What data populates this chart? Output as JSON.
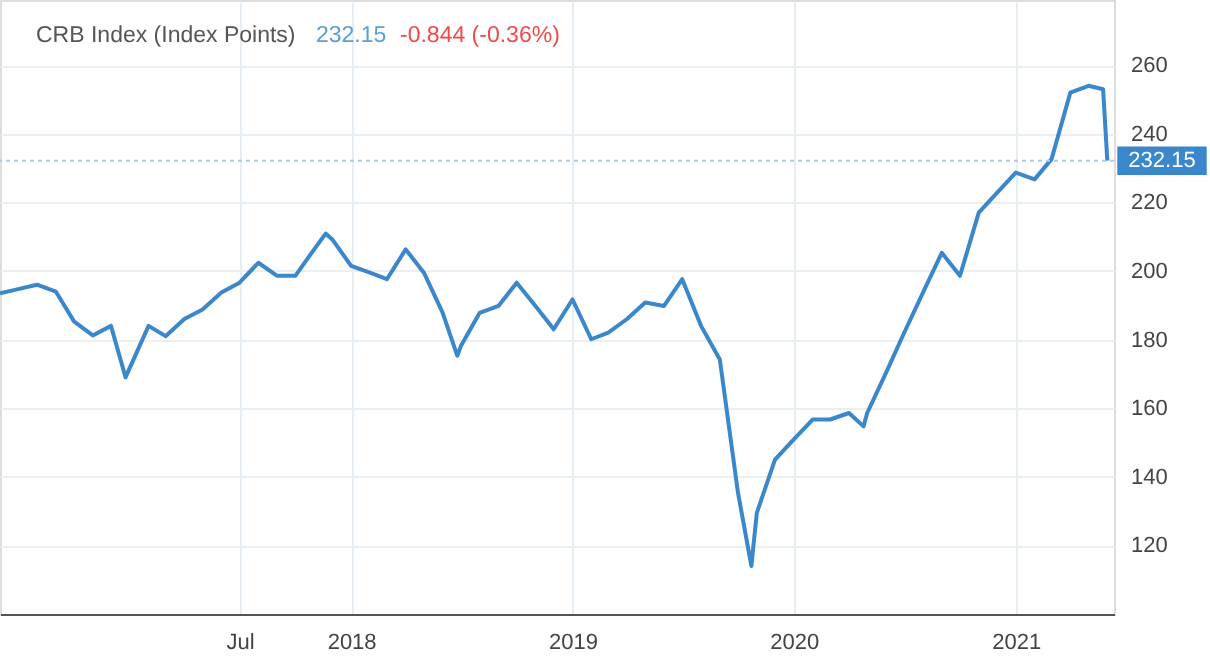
{
  "chart_data": {
    "type": "line",
    "title": "CRB Index (Index Points)",
    "annotations": [
      "232.15",
      "-0.844 (-0.36%)"
    ],
    "x": [
      "2016-06-01",
      "2016-07-01",
      "2016-08-01",
      "2016-09-01",
      "2016-10-01",
      "2016-11-01",
      "2016-12-01",
      "2016-12-25",
      "2017-02-01",
      "2017-03-01",
      "2017-04-01",
      "2017-05-01",
      "2017-06-01",
      "2017-07-01",
      "2017-08-01",
      "2017-09-01",
      "2017-10-01",
      "2017-11-01",
      "2017-11-20",
      "2017-12-01",
      "2018-01-01",
      "2018-02-01",
      "2018-03-01",
      "2018-04-01",
      "2018-05-01",
      "2018-06-01",
      "2018-06-25",
      "2018-07-01",
      "2018-08-01",
      "2018-09-01",
      "2018-10-01",
      "2018-11-01",
      "2018-12-01",
      "2019-01-01",
      "2019-02-01",
      "2019-03-01",
      "2019-04-01",
      "2019-05-01",
      "2019-06-01",
      "2019-07-01",
      "2019-08-01",
      "2019-09-01",
      "2019-10-01",
      "2019-10-23",
      "2019-11-01",
      "2019-12-01",
      "2020-01-01",
      "2020-02-01",
      "2020-03-01",
      "2020-04-01",
      "2020-04-25",
      "2020-05-01",
      "2020-06-01",
      "2020-07-01",
      "2020-08-01",
      "2020-09-01",
      "2020-10-01",
      "2020-11-01",
      "2020-12-01",
      "2021-01-01",
      "2021-02-01",
      "2021-03-01",
      "2021-04-01",
      "2021-05-01",
      "2021-05-25",
      "2021-06-01"
    ],
    "series": [
      {
        "color": "#3a87cb",
        "values": [
          193.5,
          194.7,
          196,
          194,
          185.3,
          181.2,
          184,
          169,
          184,
          181,
          186,
          188.8,
          193.7,
          196.6,
          202.4,
          198.6,
          198.6,
          206.3,
          210.9,
          209.2,
          201.5,
          199.5,
          197.6,
          206.3,
          199.5,
          187.8,
          175.3,
          178.1,
          187.8,
          189.8,
          196.6,
          189.8,
          183,
          191.7,
          180.1,
          182,
          186,
          190.8,
          189.8,
          197.6,
          184,
          174.2,
          135.3,
          114,
          129.5,
          145,
          150.9,
          156.7,
          156.7,
          158.6,
          154.7,
          158.6,
          170.3,
          182,
          193.7,
          205.3,
          198.6,
          217,
          222.8,
          228.7,
          226.7,
          232.6,
          252,
          254,
          253,
          232.15
        ]
      }
    ],
    "ylim": [
      100,
      279
    ],
    "yticks": [
      120,
      140,
      160,
      180,
      200,
      220,
      240,
      260
    ],
    "xlim": [
      "2016-06-01",
      "2021-06-12"
    ],
    "xticks": [
      {
        "value": "2017-07-01",
        "label": "Jul"
      },
      {
        "value": "2018-01-01",
        "label": "2018"
      },
      {
        "value": "2019-01-01",
        "label": "2019"
      },
      {
        "value": "2020-01-01",
        "label": "2020"
      },
      {
        "value": "2021-01-01",
        "label": "2021"
      }
    ],
    "ref_lines": [
      {
        "axis": "y",
        "value": 232.15,
        "label": "232.15",
        "color": "#a8cdee",
        "line_style": "dotted"
      }
    ],
    "grid": true
  }
}
